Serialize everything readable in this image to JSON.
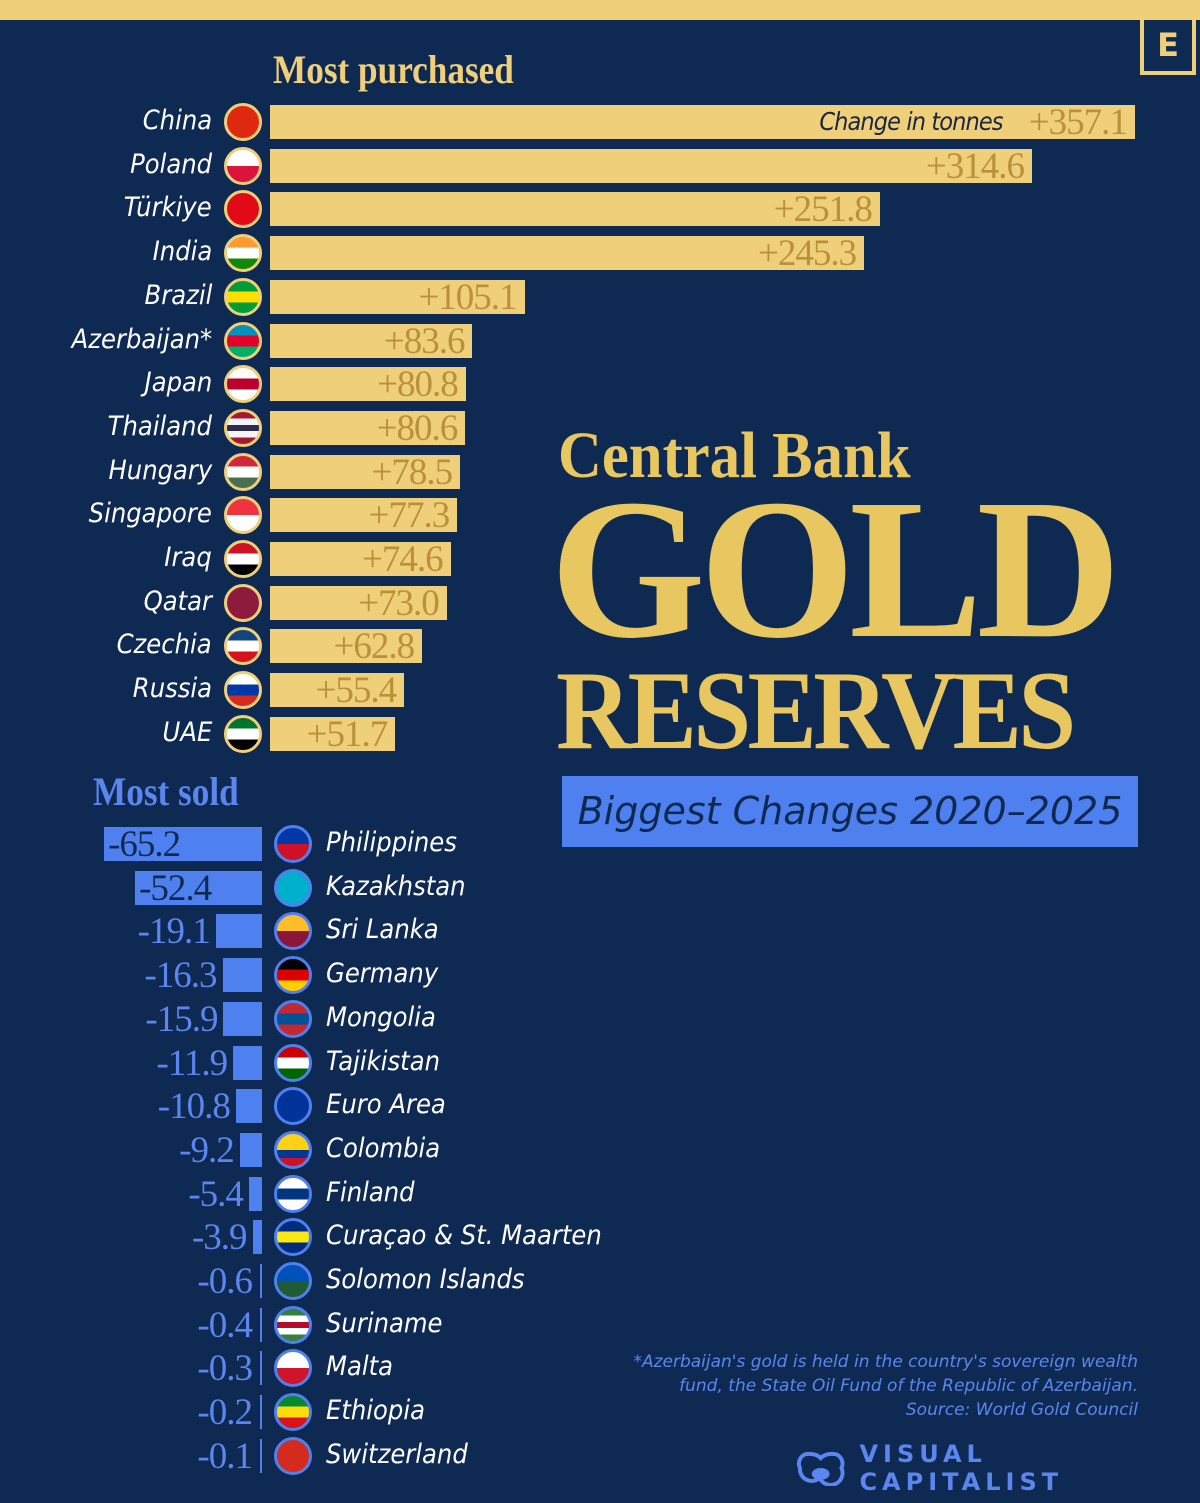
{
  "chart_data": {
    "type": "bar",
    "title": "Central Bank GOLD RESERVES",
    "title_line1": "Central Bank",
    "title_line2": "GOLD",
    "title_line3": "RESERVES",
    "subtitle": "Biggest Changes 2020–2025",
    "unit_label": "Change in tonnes",
    "purchased": {
      "heading": "Most purchased",
      "categories": [
        "China",
        "Poland",
        "Türkiye",
        "India",
        "Brazil",
        "Azerbaijan*",
        "Japan",
        "Thailand",
        "Hungary",
        "Singapore",
        "Iraq",
        "Qatar",
        "Czechia",
        "Russia",
        "UAE"
      ],
      "values": [
        357.1,
        314.6,
        251.8,
        245.3,
        105.1,
        83.6,
        80.8,
        80.6,
        78.5,
        77.3,
        74.6,
        73.0,
        62.8,
        55.4,
        51.7
      ],
      "labels": [
        "+357.1",
        "+314.6",
        "+251.8",
        "+245.3",
        "+105.1",
        "+83.6",
        "+80.8",
        "+80.6",
        "+78.5",
        "+77.3",
        "+74.6",
        "+73.0",
        "+62.8",
        "+55.4",
        "+51.7"
      ],
      "flags": [
        [
          "#de2910"
        ],
        [
          "#ffffff",
          "#dc143c"
        ],
        [
          "#e30a17"
        ],
        [
          "#ff9933",
          "#ffffff",
          "#138808"
        ],
        [
          "#009c3b",
          "#ffdf00",
          "#009c3b"
        ],
        [
          "#0092bc",
          "#e4002b",
          "#00af66"
        ],
        [
          "#ffffff",
          "#bc002d",
          "#ffffff"
        ],
        [
          "#a51931",
          "#f4f5f8",
          "#2d2a4a",
          "#f4f5f8",
          "#a51931"
        ],
        [
          "#ce2939",
          "#ffffff",
          "#477050"
        ],
        [
          "#ef3340",
          "#ffffff"
        ],
        [
          "#ce1126",
          "#ffffff",
          "#000000"
        ],
        [
          "#8d1b3d"
        ],
        [
          "#11457e",
          "#ffffff",
          "#d7141a"
        ],
        [
          "#ffffff",
          "#0039a6",
          "#d52b1e"
        ],
        [
          "#00732f",
          "#ffffff",
          "#000000"
        ]
      ]
    },
    "sold": {
      "heading": "Most sold",
      "categories": [
        "Philippines",
        "Kazakhstan",
        "Sri Lanka",
        "Germany",
        "Mongolia",
        "Tajikistan",
        "Euro Area",
        "Colombia",
        "Finland",
        "Curaçao & St. Maarten",
        "Solomon Islands",
        "Suriname",
        "Malta",
        "Ethiopia",
        "Switzerland"
      ],
      "values": [
        -65.2,
        -52.4,
        -19.1,
        -16.3,
        -15.9,
        -11.9,
        -10.8,
        -9.2,
        -5.4,
        -3.9,
        -0.6,
        -0.4,
        -0.3,
        -0.2,
        -0.1
      ],
      "labels": [
        "-65.2",
        "-52.4",
        "-19.1",
        "-16.3",
        "-15.9",
        "-11.9",
        "-10.8",
        "-9.2",
        "-5.4",
        "-3.9",
        "-0.6",
        "-0.4",
        "-0.3",
        "-0.2",
        "-0.1"
      ],
      "flags": [
        [
          "#0038a8",
          "#ce1126"
        ],
        [
          "#00afca"
        ],
        [
          "#ffbe29",
          "#8d153a"
        ],
        [
          "#000000",
          "#dd0000",
          "#ffce00"
        ],
        [
          "#c4272f",
          "#015197",
          "#c4272f"
        ],
        [
          "#cc0000",
          "#ffffff",
          "#006600"
        ],
        [
          "#003399"
        ],
        [
          "#fcd116",
          "#fcd116",
          "#003893",
          "#ce1126"
        ],
        [
          "#ffffff",
          "#003580",
          "#ffffff"
        ],
        [
          "#002b7f",
          "#f9e814",
          "#002b7f"
        ],
        [
          "#0051ba",
          "#215b33"
        ],
        [
          "#377e3f",
          "#ffffff",
          "#b40a2d",
          "#ffffff",
          "#377e3f"
        ],
        [
          "#ffffff",
          "#cf142b"
        ],
        [
          "#078930",
          "#fcdd09",
          "#da121a"
        ],
        [
          "#d52b1e"
        ]
      ]
    }
  },
  "brand": {
    "corner_mark": "E",
    "logo_text": "VISUAL CAPITALIST"
  },
  "footnote": {
    "line1": "*Azerbaijan's gold is held in the country's sovereign wealth",
    "line2": "fund, the State Oil Fund of the Republic of Azerbaijan.",
    "source": "Source: World Gold Council"
  },
  "colors": {
    "background": "#0f2a52",
    "gold": "#f0cf7a",
    "gold_text": "#b8913a",
    "blue": "#4f80f0"
  }
}
